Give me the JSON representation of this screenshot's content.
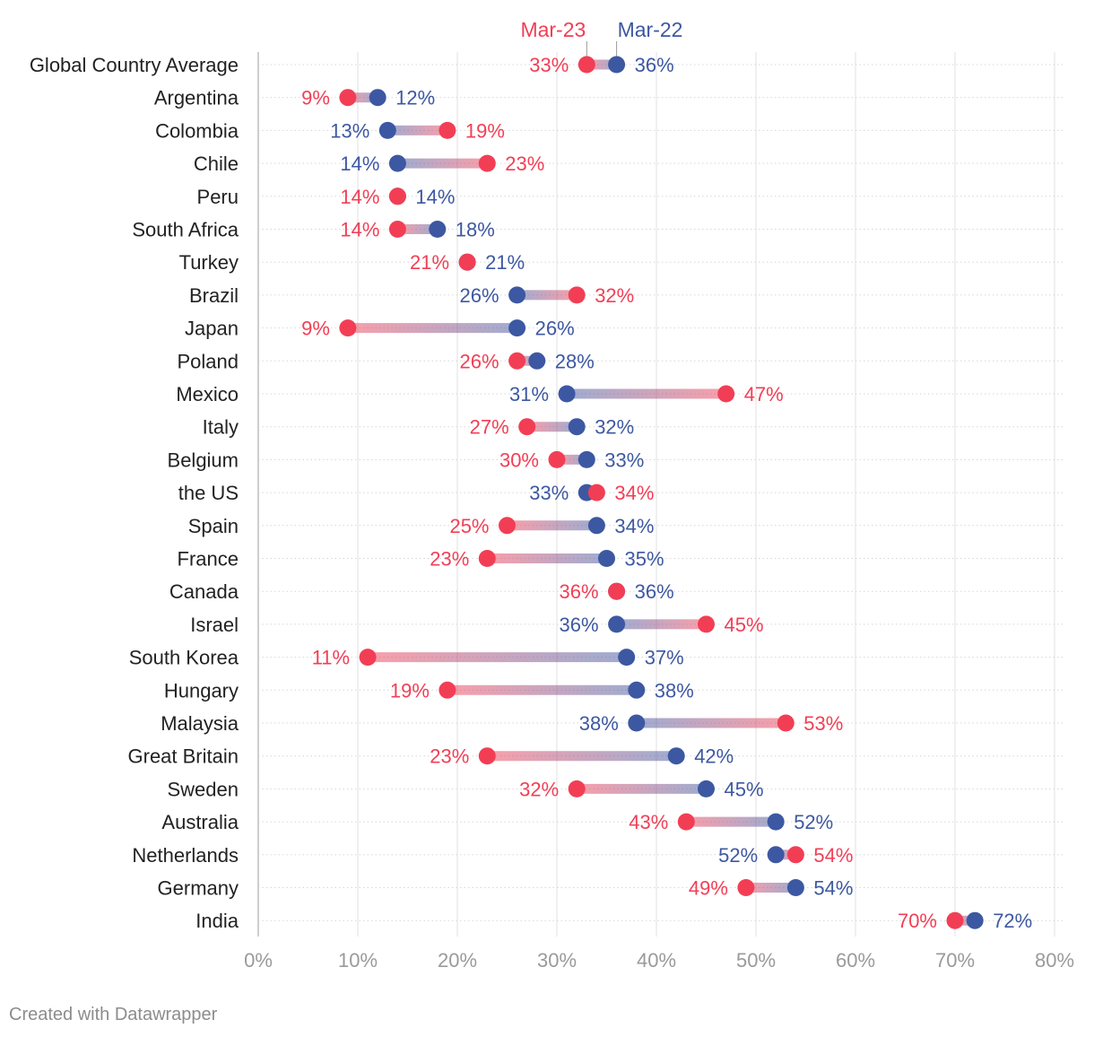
{
  "chart_data": {
    "type": "dumbbell",
    "title": "",
    "xlabel": "",
    "ylabel": "",
    "xlim": [
      0,
      80
    ],
    "ticks": [
      0,
      10,
      20,
      30,
      40,
      50,
      60,
      70,
      80
    ],
    "tick_labels": [
      "0%",
      "10%",
      "20%",
      "30%",
      "40%",
      "50%",
      "60%",
      "70%",
      "80%"
    ],
    "series": [
      {
        "name": "Mar-23",
        "color": "#f23e55",
        "key": "mar23"
      },
      {
        "name": "Mar-22",
        "color": "#3d58a2",
        "key": "mar22"
      }
    ],
    "categories": [
      "Global Country Average",
      "Argentina",
      "Colombia",
      "Chile",
      "Peru",
      "South Africa",
      "Turkey",
      "Brazil",
      "Japan",
      "Poland",
      "Mexico",
      "Italy",
      "Belgium",
      "the US",
      "Spain",
      "France",
      "Canada",
      "Israel",
      "South Korea",
      "Hungary",
      "Malaysia",
      "Great Britain",
      "Sweden",
      "Australia",
      "Netherlands",
      "Germany",
      "India"
    ],
    "mar23": [
      33,
      9,
      19,
      23,
      14,
      14,
      21,
      32,
      9,
      26,
      47,
      27,
      30,
      34,
      25,
      23,
      36,
      45,
      11,
      19,
      53,
      23,
      32,
      43,
      54,
      49,
      70
    ],
    "mar22": [
      36,
      12,
      13,
      14,
      14,
      18,
      21,
      26,
      26,
      28,
      31,
      32,
      33,
      33,
      34,
      35,
      36,
      36,
      37,
      38,
      38,
      42,
      45,
      52,
      52,
      54,
      72
    ]
  },
  "footer": {
    "credit": "Created with Datawrapper"
  }
}
